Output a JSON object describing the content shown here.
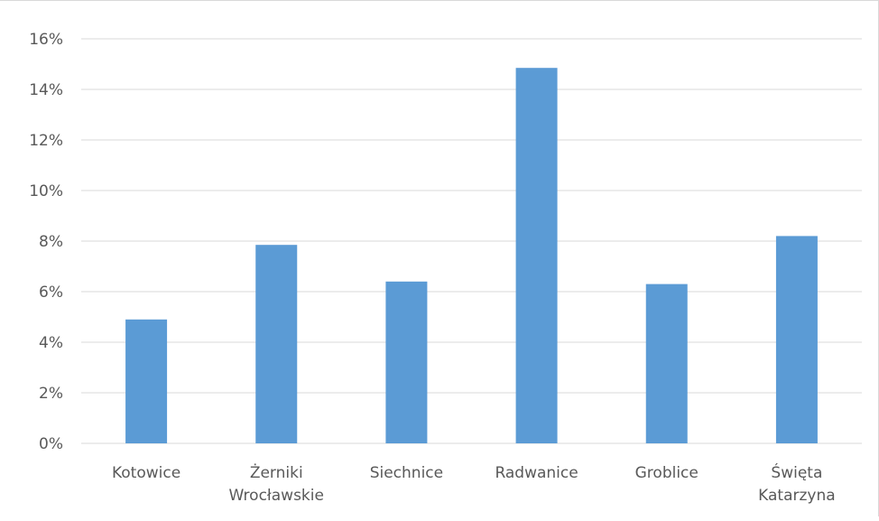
{
  "chart_data": {
    "type": "bar",
    "categories": [
      [
        "Kotowice"
      ],
      [
        "Żerniki",
        "Wrocławskie"
      ],
      [
        "Siechnice"
      ],
      [
        "Radwanice"
      ],
      [
        "Groblice"
      ],
      [
        "Święta",
        "Katarzyna"
      ]
    ],
    "values": [
      4.9,
      7.85,
      6.4,
      14.85,
      6.3,
      8.2
    ],
    "y_ticks": [
      "0%",
      "2%",
      "4%",
      "6%",
      "8%",
      "10%",
      "12%",
      "14%",
      "16%"
    ],
    "ylim": [
      0,
      16
    ],
    "grid": true,
    "legend": false,
    "title": "",
    "xlabel": "",
    "ylabel": "",
    "bar_color": "#5b9bd5",
    "grid_color": "#d9d9d9"
  }
}
